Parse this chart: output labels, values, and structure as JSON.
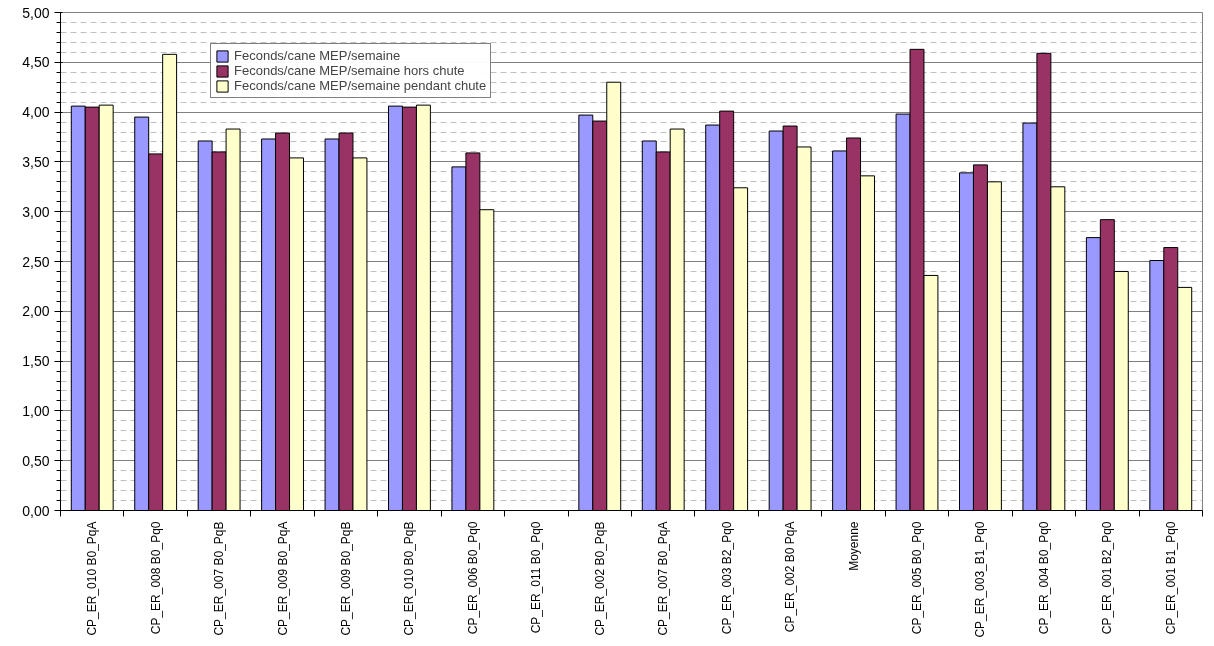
{
  "chart_data": {
    "type": "bar",
    "categories": [
      "CP_ER_010 B0_PqA",
      "CP_ER_008 B0_Pq0",
      "CP_ER_007 B0_PqB",
      "CP_ER_009 B0_PqA",
      "CP_ER_009 B0_PqB",
      "CP_ER_010 B0_PqB",
      "CP_ER_006 B0_Pq0",
      "CP_ER_011 B0_Pq0",
      "CP_ER_002 B0_PqB",
      "CP_ER_007 B0_PqA",
      "CP_ER_003 B2_Pq0",
      "CP_ER_002 B0 PqA",
      "Moyenne",
      "CP_ER_005 B0_Pq0",
      "CP_ER_003_B1_Pq0",
      "CP_ER_004 B0_Pq0",
      "CP_ER_001 B2_Pq0",
      "CP_ER_001 B1_Pq0"
    ],
    "series": [
      {
        "name": "Feconds/cane MEP/semaine",
        "color": "#9999ff",
        "values": [
          4.06,
          3.95,
          3.71,
          3.73,
          3.73,
          4.06,
          3.45,
          null,
          3.97,
          3.71,
          3.87,
          3.81,
          3.61,
          3.98,
          3.39,
          3.89,
          2.74,
          2.51
        ]
      },
      {
        "name": "Feconds/cane MEP/semaine hors chute",
        "color": "#993366",
        "values": [
          4.05,
          3.58,
          3.6,
          3.79,
          3.79,
          4.05,
          3.59,
          null,
          3.91,
          3.6,
          4.01,
          3.86,
          3.74,
          4.63,
          3.47,
          4.59,
          2.92,
          2.64
        ]
      },
      {
        "name": "Feconds/cane MEP/semaine pendant chute",
        "color": "#ffffcc",
        "values": [
          4.07,
          4.58,
          3.83,
          3.54,
          3.54,
          4.07,
          3.02,
          null,
          4.3,
          3.83,
          3.24,
          3.65,
          3.36,
          2.36,
          3.3,
          3.25,
          2.4,
          2.24
        ]
      }
    ],
    "ylim": [
      0,
      5
    ],
    "yticks": [
      {
        "value": 0,
        "label": "0,00"
      },
      {
        "value": 0.5,
        "label": "0,50"
      },
      {
        "value": 1,
        "label": "1,00"
      },
      {
        "value": 1.5,
        "label": "1,50"
      },
      {
        "value": 2,
        "label": "2,00"
      },
      {
        "value": 2.5,
        "label": "2,50"
      },
      {
        "value": 3,
        "label": "3,00"
      },
      {
        "value": 3.5,
        "label": "3,50"
      },
      {
        "value": 4,
        "label": "4,00"
      },
      {
        "value": 4.5,
        "label": "4,50"
      },
      {
        "value": 5,
        "label": "5,00"
      }
    ],
    "grid": "y",
    "legend": "top left"
  }
}
